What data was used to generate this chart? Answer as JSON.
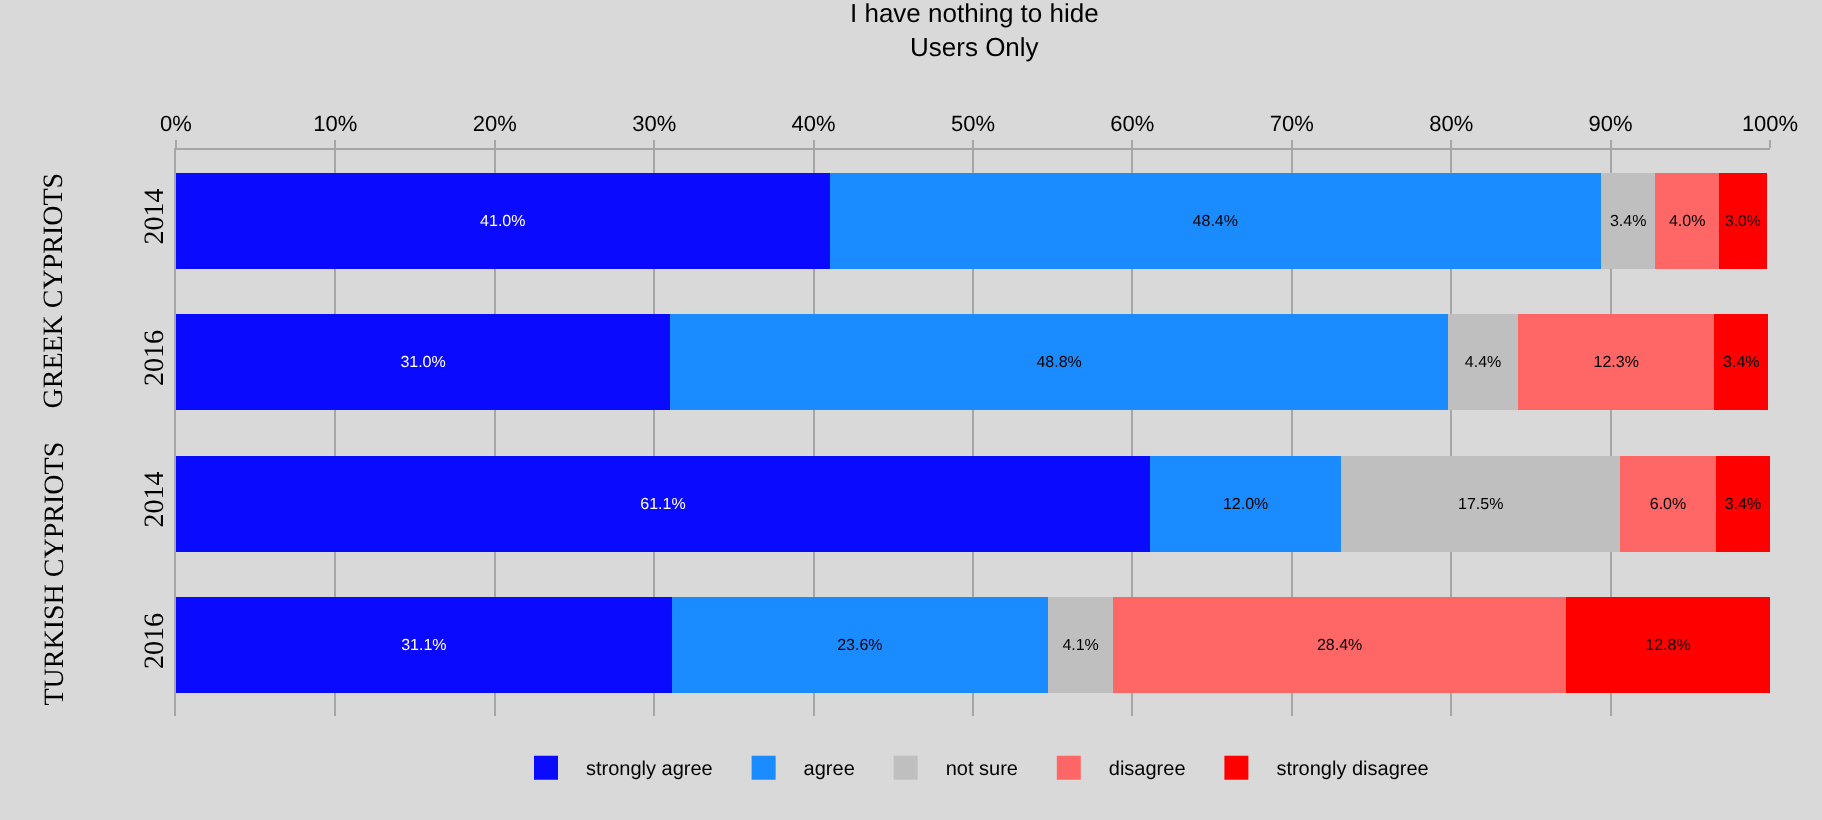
{
  "chart_data": {
    "type": "bar",
    "orientation": "horizontal",
    "stacked": true,
    "title": "I have nothing to hide",
    "subtitle": "Users Only",
    "categories": [
      "2014",
      "2016",
      "2014",
      "2016"
    ],
    "annotations": [
      "GREEK CYPRIOTS",
      "TURKISH CYPRIOTS"
    ],
    "series": [
      {
        "name": "strongly agree",
        "color": "#0a0aff",
        "values": [
          41.0,
          31.0,
          61.1,
          31.1
        ],
        "value_labels": [
          "41.0%",
          "31.0%",
          "61.1%",
          "31.1%"
        ]
      },
      {
        "name": "agree",
        "color": "#1a8cff",
        "values": [
          48.4,
          48.8,
          12.0,
          23.6
        ],
        "value_labels": [
          "48.4%",
          "48.8%",
          "12.0%",
          "23.6%"
        ]
      },
      {
        "name": "not sure",
        "color": "#bfbfbf",
        "values": [
          3.4,
          4.4,
          17.5,
          4.1
        ],
        "value_labels": [
          "3.4%",
          "4.4%",
          "17.5%",
          "4.1%"
        ]
      },
      {
        "name": "disagree",
        "color": "#ff6666",
        "values": [
          4.0,
          12.3,
          6.0,
          28.4
        ],
        "value_labels": [
          "4.0%",
          "12.3%",
          "6.0%",
          "28.4%"
        ]
      },
      {
        "name": "strongly disagree",
        "color": "#ff0000",
        "values": [
          3.0,
          3.4,
          3.4,
          12.8
        ],
        "value_labels": [
          "3.0%",
          "3.4%",
          "3.4%",
          "12.8%"
        ]
      }
    ],
    "xlim": [
      0,
      100
    ],
    "xticks": [
      {
        "value": 0,
        "label": "0%"
      },
      {
        "value": 10,
        "label": "10%"
      },
      {
        "value": 20,
        "label": "20%"
      },
      {
        "value": 30,
        "label": "30%"
      },
      {
        "value": 40,
        "label": "40%"
      },
      {
        "value": 50,
        "label": "50%"
      },
      {
        "value": 60,
        "label": "60%"
      },
      {
        "value": 70,
        "label": "70%"
      },
      {
        "value": 80,
        "label": "80%"
      },
      {
        "value": 90,
        "label": "90%"
      },
      {
        "value": 100,
        "label": "100%"
      }
    ],
    "grid": "x",
    "legend": "bottom"
  }
}
